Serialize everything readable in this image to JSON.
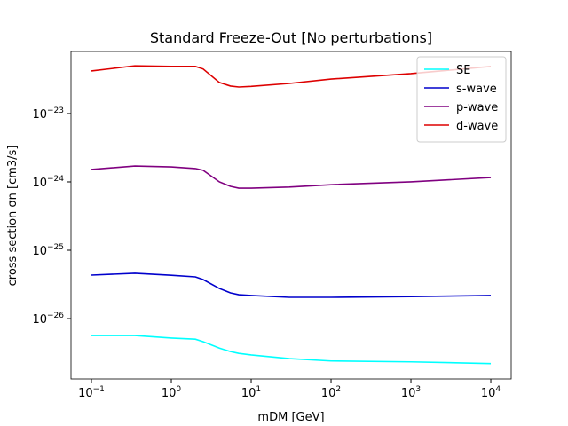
{
  "chart_data": {
    "type": "line",
    "title": "Standard Freeze-Out [No perturbations]",
    "x_label": "mDM [GeV]",
    "y_label": "cross section σn [cm3/s]",
    "xscale": "log",
    "yscale": "log",
    "x": [
      0.1,
      0.35,
      1,
      2,
      2.5,
      4,
      5.5,
      7,
      10,
      30,
      100,
      1000,
      10000
    ],
    "series": [
      {
        "name": "SE",
        "color": "#00ffff",
        "values": [
          5.66e-27,
          5.66e-27,
          5.2e-27,
          5e-27,
          4.6e-27,
          3.7e-27,
          3.3e-27,
          3.1e-27,
          2.94e-27,
          2.6e-27,
          2.4e-27,
          2.33e-27,
          2.2e-27
        ]
      },
      {
        "name": "s-wave",
        "color": "#0000cc",
        "values": [
          4.33e-26,
          4.6e-26,
          4.3e-26,
          4.08e-26,
          3.73e-26,
          2.76e-26,
          2.38e-26,
          2.24e-26,
          2.18e-26,
          2.05e-26,
          2.05e-26,
          2.1e-26,
          2.18e-26
        ]
      },
      {
        "name": "p-wave",
        "color": "#800080",
        "values": [
          1.52e-24,
          1.71e-24,
          1.66e-24,
          1.57e-24,
          1.48e-24,
          1e-24,
          8.6e-25,
          8.1e-25,
          8.1e-25,
          8.4e-25,
          9.1e-25,
          1e-24,
          1.16e-24
        ]
      },
      {
        "name": "d-wave",
        "color": "#dd0000",
        "values": [
          4.2e-23,
          5e-23,
          4.9e-23,
          4.9e-23,
          4.5e-23,
          2.85e-23,
          2.53e-23,
          2.45e-23,
          2.5e-23,
          2.76e-23,
          3.2e-23,
          3.84e-23,
          4.9e-23
        ]
      }
    ],
    "xlim": [
      0.0555,
      18000
    ],
    "ylim": [
      1.31e-27,
      8.1e-23
    ],
    "xticks": [
      {
        "value": 0.1,
        "label": "10−1"
      },
      {
        "value": 1,
        "label": "100"
      },
      {
        "value": 10,
        "label": "101"
      },
      {
        "value": 100,
        "label": "102"
      },
      {
        "value": 1000,
        "label": "103"
      },
      {
        "value": 10000,
        "label": "104"
      }
    ],
    "yticks": [
      {
        "value": 1e-26,
        "label": "10−26"
      },
      {
        "value": 1e-25,
        "label": "10−25"
      },
      {
        "value": 1e-24,
        "label": "10−24"
      },
      {
        "value": 1e-23,
        "label": "10−23"
      }
    ],
    "legend": "upper right"
  }
}
